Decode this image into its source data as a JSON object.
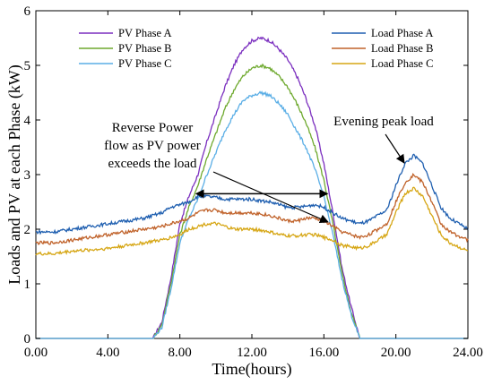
{
  "chart_data": {
    "type": "line",
    "xlabel": "Time(hours)",
    "ylabel": "Loads and PV at each Phase (kW)",
    "xlim": [
      0,
      24
    ],
    "ylim": [
      0,
      6
    ],
    "xticks": [
      "0.00",
      "4.00",
      "8.00",
      "12.00",
      "16.00",
      "20.00",
      "24.00"
    ],
    "yticks": [
      "0",
      "1",
      "2",
      "3",
      "4",
      "5",
      "6"
    ],
    "grid": false,
    "x": [
      0,
      1,
      2,
      3,
      4,
      5,
      6,
      6.5,
      7,
      7.5,
      8,
      8.5,
      9,
      9.5,
      10,
      10.5,
      11,
      11.5,
      12,
      12.5,
      13,
      13.5,
      14,
      14.5,
      15,
      15.5,
      16,
      16.5,
      17,
      17.5,
      18,
      18.5,
      19,
      19.5,
      20,
      20.5,
      21,
      21.5,
      22,
      22.5,
      23,
      24
    ],
    "series": [
      {
        "name": "PV Phase A",
        "color": "#7b2fbf",
        "legend_group": "pv",
        "values": [
          0,
          0,
          0,
          0,
          0,
          0,
          0,
          0,
          0.3,
          1.1,
          2.1,
          2.6,
          3.0,
          3.6,
          4.1,
          4.6,
          5.0,
          5.3,
          5.45,
          5.5,
          5.45,
          5.3,
          5.1,
          4.8,
          4.4,
          3.9,
          3.2,
          2.3,
          1.3,
          0.6,
          0,
          0,
          0,
          0,
          0,
          0,
          0,
          0,
          0,
          0,
          0,
          0
        ]
      },
      {
        "name": "PV Phase B",
        "color": "#6ea92e",
        "legend_group": "pv",
        "values": [
          0,
          0,
          0,
          0,
          0,
          0,
          0,
          0,
          0.25,
          1.0,
          1.9,
          2.4,
          2.8,
          3.3,
          3.75,
          4.2,
          4.55,
          4.8,
          4.95,
          5.0,
          4.95,
          4.8,
          4.6,
          4.3,
          3.95,
          3.5,
          2.9,
          2.1,
          1.2,
          0.5,
          0,
          0,
          0,
          0,
          0,
          0,
          0,
          0,
          0,
          0,
          0,
          0
        ]
      },
      {
        "name": "PV Phase C",
        "color": "#5aaee6",
        "legend_group": "pv",
        "values": [
          0,
          0,
          0,
          0,
          0,
          0,
          0,
          0,
          0.2,
          0.9,
          1.75,
          2.2,
          2.55,
          3.0,
          3.4,
          3.8,
          4.1,
          4.35,
          4.45,
          4.5,
          4.45,
          4.3,
          4.1,
          3.8,
          3.5,
          3.1,
          2.6,
          1.9,
          1.1,
          0.45,
          0,
          0,
          0,
          0,
          0,
          0,
          0,
          0,
          0,
          0,
          0,
          0
        ]
      },
      {
        "name": "Load Phase A",
        "color": "#1f5fb0",
        "legend_group": "load",
        "values": [
          1.95,
          1.95,
          2.0,
          2.05,
          2.1,
          2.15,
          2.2,
          2.25,
          2.3,
          2.4,
          2.45,
          2.5,
          2.6,
          2.6,
          2.58,
          2.55,
          2.55,
          2.55,
          2.55,
          2.52,
          2.5,
          2.45,
          2.4,
          2.4,
          2.42,
          2.45,
          2.4,
          2.3,
          2.2,
          2.15,
          2.1,
          2.15,
          2.25,
          2.35,
          2.8,
          3.2,
          3.35,
          3.2,
          2.8,
          2.4,
          2.2,
          2.0
        ]
      },
      {
        "name": "Load Phase B",
        "color": "#c0622a",
        "legend_group": "load",
        "values": [
          1.75,
          1.75,
          1.8,
          1.85,
          1.9,
          1.95,
          2.0,
          2.02,
          2.05,
          2.1,
          2.15,
          2.2,
          2.3,
          2.35,
          2.35,
          2.3,
          2.3,
          2.3,
          2.3,
          2.28,
          2.25,
          2.2,
          2.15,
          2.15,
          2.2,
          2.2,
          2.15,
          2.05,
          1.95,
          1.9,
          1.85,
          1.9,
          2.0,
          2.1,
          2.5,
          2.85,
          3.0,
          2.85,
          2.5,
          2.1,
          1.95,
          1.8
        ]
      },
      {
        "name": "Load Phase C",
        "color": "#d6a614",
        "legend_group": "load",
        "values": [
          1.55,
          1.55,
          1.6,
          1.62,
          1.65,
          1.7,
          1.75,
          1.78,
          1.8,
          1.85,
          1.9,
          2.0,
          2.05,
          2.1,
          2.1,
          2.05,
          2.0,
          2.0,
          2.0,
          1.98,
          1.95,
          1.9,
          1.88,
          1.88,
          1.9,
          1.9,
          1.85,
          1.8,
          1.7,
          1.68,
          1.65,
          1.7,
          1.8,
          1.9,
          2.3,
          2.65,
          2.75,
          2.6,
          2.25,
          1.9,
          1.75,
          1.6
        ]
      }
    ],
    "legend": {
      "pv_placement": "top-left",
      "load_placement": "top-right"
    },
    "annotations": [
      {
        "lines": [
          "Reverse Power",
          "flow as PV power",
          "exceeds the load"
        ]
      },
      {
        "lines": [
          "Evening peak load"
        ]
      }
    ]
  }
}
